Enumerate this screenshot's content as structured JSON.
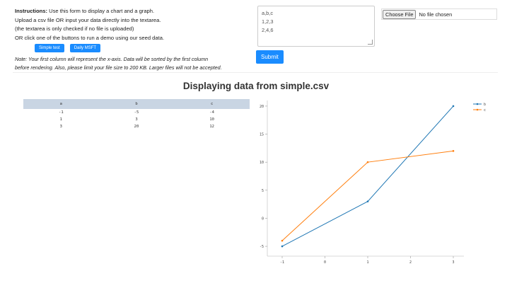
{
  "instructions": {
    "bold_label": "Instructions:",
    "line1_rest": " Use this form to display a chart and a graph.",
    "line2": "Upload a csv file OR input your data directly into the textarea.",
    "line3": "(the textarea is only checked if no file is uploaded)",
    "line4": "OR click one of the buttons to run a demo using our seed data.",
    "simple_test_label": "Simple test",
    "daily_msft_label": "Daily MSFT",
    "note_line1": "Note: Your first column will represent the x-axis. Data will be sorted by the first column",
    "note_line2": "before rendering. Also, please limit your file size to 200 KB. Larger files will not be accepted."
  },
  "form": {
    "textarea_value": "a,b,c\n1,2,3\n2,4,6",
    "submit_label": "Submit",
    "choose_file_label": "Choose File",
    "file_status": "No file chosen"
  },
  "heading": "Displaying data from simple.csv",
  "table": {
    "headers": [
      "a",
      "b",
      "c"
    ],
    "rows": [
      [
        "-1",
        "-5",
        "-4"
      ],
      [
        "1",
        "3",
        "10"
      ],
      [
        "3",
        "20",
        "12"
      ]
    ]
  },
  "colors": {
    "accent": "#1a8cff",
    "series_b": "#1f77b4",
    "series_c": "#ff7f0e",
    "table_header": "#c9d5e3"
  },
  "chart_data": {
    "type": "line",
    "x": [
      -1,
      1,
      3
    ],
    "series": [
      {
        "name": "b",
        "values": [
          -5,
          3,
          20
        ]
      },
      {
        "name": "c",
        "values": [
          -4,
          10,
          12
        ]
      }
    ],
    "xlim": [
      -1,
      3
    ],
    "ylim": [
      -6,
      21
    ],
    "x_ticks": [
      "-1",
      "0",
      "1",
      "2",
      "3"
    ],
    "y_ticks": [
      "-5",
      "0",
      "5",
      "10",
      "15",
      "20"
    ],
    "legend": "top-right",
    "grid": false
  }
}
